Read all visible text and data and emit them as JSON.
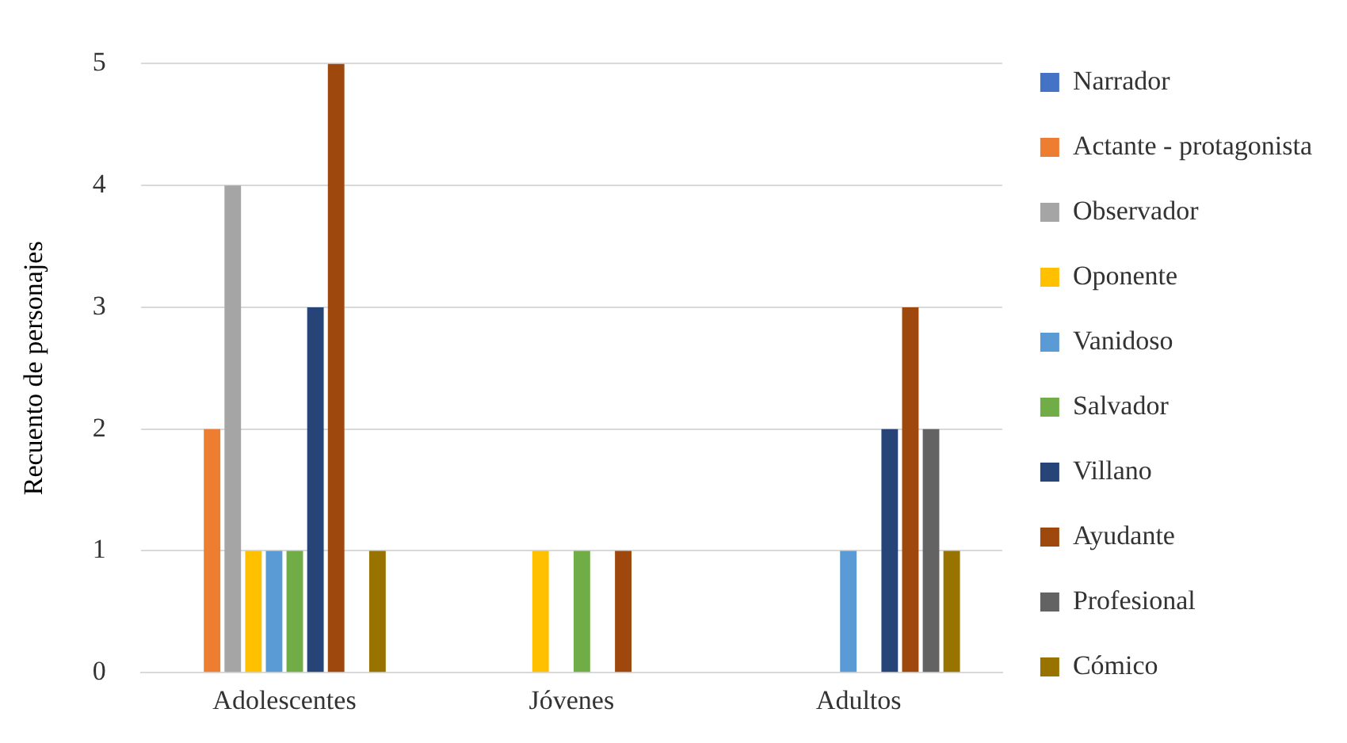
{
  "chart_data": {
    "type": "bar",
    "ylabel": "Recuento de personajes",
    "categories": [
      "Adolescentes",
      "Jóvenes",
      "Adultos"
    ],
    "series": [
      {
        "name": "Narrador",
        "color": "#4472c4",
        "values": [
          0,
          0,
          0
        ]
      },
      {
        "name": "Actante - protagonista",
        "color": "#ed7d31",
        "values": [
          2,
          0,
          0
        ]
      },
      {
        "name": "Observador",
        "color": "#a5a5a5",
        "values": [
          4,
          0,
          0
        ]
      },
      {
        "name": "Oponente",
        "color": "#ffc000",
        "values": [
          1,
          1,
          0
        ]
      },
      {
        "name": "Vanidoso",
        "color": "#5b9bd5",
        "values": [
          1,
          0,
          1
        ]
      },
      {
        "name": "Salvador",
        "color": "#70ad47",
        "values": [
          1,
          1,
          0
        ]
      },
      {
        "name": "Villano",
        "color": "#264478",
        "values": [
          3,
          0,
          2
        ]
      },
      {
        "name": "Ayudante",
        "color": "#9e480e",
        "values": [
          5,
          1,
          3
        ]
      },
      {
        "name": "Profesional",
        "color": "#636363",
        "values": [
          0,
          0,
          2
        ]
      },
      {
        "name": "Cómico",
        "color": "#997300",
        "values": [
          1,
          0,
          1
        ]
      }
    ],
    "ylim": [
      0,
      5
    ],
    "yticks": [
      0,
      1,
      2,
      3,
      4,
      5
    ],
    "grid": "y",
    "legend": "right"
  }
}
